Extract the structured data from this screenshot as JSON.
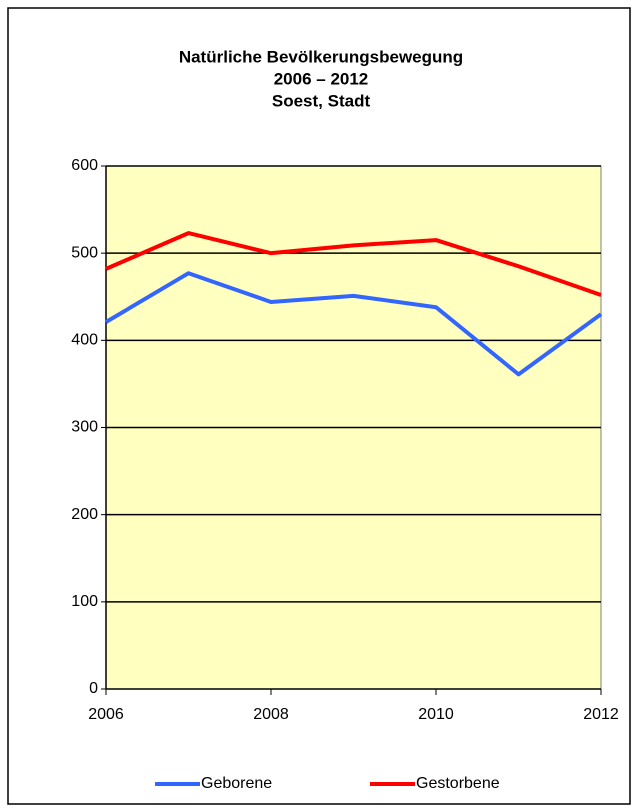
{
  "chart_data": {
    "type": "line",
    "title": [
      "Natürliche Bevölkerungsbewegung",
      "2006 – 2012",
      "Soest, Stadt"
    ],
    "x": [
      2006,
      2007,
      2008,
      2009,
      2010,
      2011,
      2012
    ],
    "series": [
      {
        "name": "Geborene",
        "color": "#3366ff",
        "values": [
          421,
          477,
          444,
          451,
          438,
          361,
          430
        ]
      },
      {
        "name": "Gestorbene",
        "color": "#ff0000",
        "values": [
          482,
          523,
          500,
          509,
          515,
          485,
          452
        ]
      }
    ],
    "xlim": [
      2006,
      2012
    ],
    "xticks": [
      2006,
      2008,
      2010,
      2012
    ],
    "ylim": [
      0,
      600
    ],
    "yticks": [
      0,
      100,
      200,
      300,
      400,
      500,
      600
    ],
    "grid": true,
    "legend": "bottom",
    "plot_background": "#ffffc0"
  }
}
